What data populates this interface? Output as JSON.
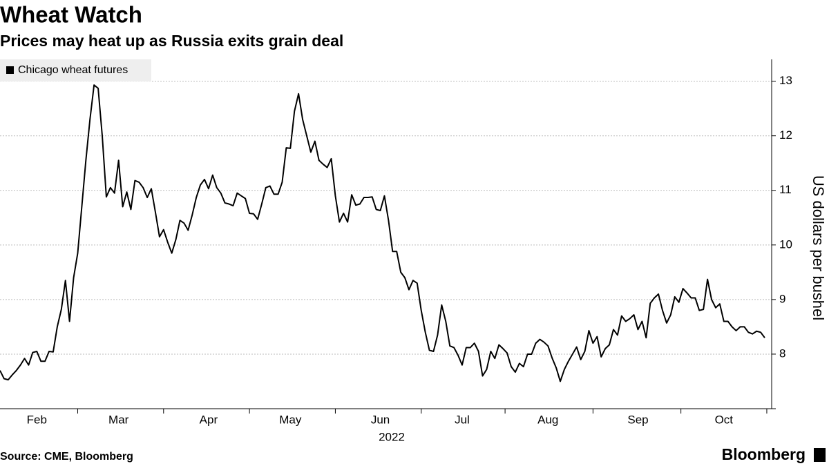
{
  "chart_data": {
    "type": "line",
    "title": "Wheat Watch",
    "subtitle": "Prices may heat up as Russia exits grain deal",
    "ylabel": "US dollars per bushel",
    "xlabel": "2022",
    "source": "Source: CME, Bloomberg",
    "brand": "Bloomberg",
    "ylim": [
      7,
      13.4
    ],
    "yticks": [
      8,
      9,
      10,
      11,
      12,
      13
    ],
    "grid": true,
    "legend": "top-left",
    "categories": [
      null,
      null,
      null,
      null,
      null,
      null,
      null,
      null,
      null,
      "Feb",
      null,
      null,
      null,
      null,
      null,
      null,
      null,
      null,
      null,
      null,
      null,
      null,
      null,
      null,
      null,
      null,
      null,
      null,
      null,
      "Mar",
      null,
      null,
      null,
      null,
      null,
      null,
      null,
      null,
      null,
      null,
      null,
      null,
      null,
      null,
      null,
      null,
      null,
      null,
      null,
      null,
      null,
      "Apr",
      null,
      null,
      null,
      null,
      null,
      null,
      null,
      null,
      null,
      null,
      null,
      null,
      null,
      null,
      null,
      null,
      null,
      null,
      null,
      "May",
      null,
      null,
      null,
      null,
      null,
      null,
      null,
      null,
      null,
      null,
      null,
      null,
      null,
      null,
      null,
      null,
      null,
      null,
      null,
      null,
      null,
      "Jun",
      null,
      null,
      null,
      null,
      null,
      null,
      null,
      null,
      null,
      null,
      null,
      null,
      null,
      null,
      null,
      null,
      null,
      null,
      null,
      "Jul",
      null,
      null,
      null,
      null,
      null,
      null,
      null,
      null,
      null,
      null,
      null,
      null,
      null,
      null,
      null,
      null,
      null,
      null,
      null,
      null,
      "Aug",
      null,
      null,
      null,
      null,
      null,
      null,
      null,
      null,
      null,
      null,
      null,
      null,
      null,
      null,
      null,
      null,
      null,
      null,
      null,
      null,
      null,
      "Sep",
      null,
      null,
      null,
      null,
      null,
      null,
      null,
      null,
      null,
      null,
      null,
      null,
      null,
      null,
      null,
      null,
      null,
      null,
      null,
      null,
      "Oct",
      null,
      null,
      null,
      null,
      null,
      null,
      null,
      null,
      null,
      null
    ],
    "series": [
      {
        "name": "Chicago wheat futures",
        "color": "#000000",
        "values": [
          7.7,
          7.55,
          7.53,
          7.62,
          7.7,
          7.8,
          7.92,
          7.8,
          8.03,
          8.05,
          7.87,
          7.87,
          8.05,
          8.04,
          8.5,
          8.82,
          9.35,
          8.6,
          9.4,
          9.85,
          10.7,
          11.55,
          12.3,
          12.93,
          12.87,
          12.0,
          10.88,
          11.05,
          10.95,
          11.55,
          10.7,
          10.97,
          10.65,
          11.18,
          11.15,
          11.05,
          10.87,
          11.03,
          10.6,
          10.15,
          10.28,
          10.05,
          9.85,
          10.1,
          10.45,
          10.4,
          10.27,
          10.55,
          10.87,
          11.1,
          11.2,
          11.03,
          11.28,
          11.05,
          10.95,
          10.77,
          10.75,
          10.72,
          10.95,
          10.9,
          10.85,
          10.58,
          10.57,
          10.47,
          10.75,
          11.05,
          11.08,
          10.93,
          10.93,
          11.15,
          11.78,
          11.77,
          12.45,
          12.77,
          12.3,
          12.0,
          11.7,
          11.9,
          11.55,
          11.48,
          11.42,
          11.58,
          10.9,
          10.42,
          10.58,
          10.42,
          10.92,
          10.73,
          10.75,
          10.87,
          10.87,
          10.88,
          10.65,
          10.63,
          10.9,
          10.45,
          9.88,
          9.88,
          9.5,
          9.4,
          9.18,
          9.35,
          9.3,
          8.8,
          8.4,
          8.07,
          8.05,
          8.35,
          8.9,
          8.6,
          8.15,
          8.12,
          7.98,
          7.8,
          8.12,
          8.12,
          8.2,
          8.05,
          7.6,
          7.72,
          8.05,
          7.92,
          8.17,
          8.1,
          8.02,
          7.77,
          7.67,
          7.83,
          7.77,
          8.0,
          8.0,
          8.2,
          8.27,
          8.22,
          8.15,
          7.93,
          7.75,
          7.5,
          7.72,
          7.87,
          8.0,
          8.13,
          7.9,
          8.05,
          8.43,
          8.2,
          8.32,
          7.95,
          8.1,
          8.17,
          8.45,
          8.35,
          8.7,
          8.6,
          8.65,
          8.72,
          8.45,
          8.6,
          8.3,
          8.93,
          9.03,
          9.1,
          8.8,
          8.57,
          8.72,
          9.05,
          8.95,
          9.2,
          9.12,
          9.03,
          9.03,
          8.8,
          8.82,
          9.37,
          9.0,
          8.85,
          8.92,
          8.6,
          8.6,
          8.5,
          8.43,
          8.5,
          8.5,
          8.4,
          8.37,
          8.42,
          8.4,
          8.3
        ]
      }
    ]
  }
}
